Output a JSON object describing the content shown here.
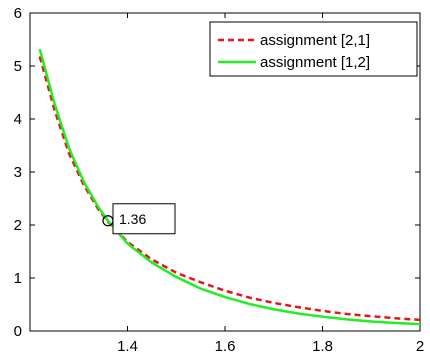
{
  "chart_data": {
    "type": "line",
    "xlim": [
      1.2,
      2.0
    ],
    "ylim": [
      0,
      6
    ],
    "x_ticks": [
      1.4,
      1.6,
      1.8,
      2
    ],
    "x_tick_labels": [
      "1.4",
      "1.6",
      "1.8",
      "2"
    ],
    "y_ticks": [
      0,
      1,
      2,
      3,
      4,
      5,
      6
    ],
    "y_tick_labels": [
      "0",
      "1",
      "2",
      "3",
      "4",
      "5",
      "6"
    ],
    "grid": false,
    "legend_position": "top-right",
    "series": [
      {
        "name": "assignment [2,1]",
        "color": "#e8141b",
        "style": "dashed",
        "x": [
          1.22,
          1.25,
          1.28,
          1.31,
          1.34,
          1.36,
          1.4,
          1.45,
          1.5,
          1.55,
          1.6,
          1.65,
          1.7,
          1.75,
          1.8,
          1.85,
          1.9,
          1.95,
          2.0
        ],
        "y": [
          5.18,
          4.18,
          3.35,
          2.76,
          2.3,
          2.06,
          1.68,
          1.35,
          1.1,
          0.92,
          0.76,
          0.63,
          0.53,
          0.45,
          0.38,
          0.32,
          0.28,
          0.24,
          0.21
        ]
      },
      {
        "name": "assignment [1,2]",
        "color": "#22ee22",
        "style": "solid",
        "x": [
          1.22,
          1.25,
          1.28,
          1.31,
          1.34,
          1.36,
          1.4,
          1.45,
          1.5,
          1.55,
          1.6,
          1.65,
          1.7,
          1.75,
          1.8,
          1.85,
          1.9,
          1.95,
          2.0
        ],
        "y": [
          5.32,
          4.3,
          3.45,
          2.82,
          2.34,
          2.08,
          1.65,
          1.29,
          1.02,
          0.8,
          0.64,
          0.51,
          0.41,
          0.33,
          0.27,
          0.22,
          0.18,
          0.15,
          0.13
        ]
      }
    ],
    "annotation": {
      "x": 1.36,
      "y": 2.08,
      "label": "1.36"
    }
  }
}
